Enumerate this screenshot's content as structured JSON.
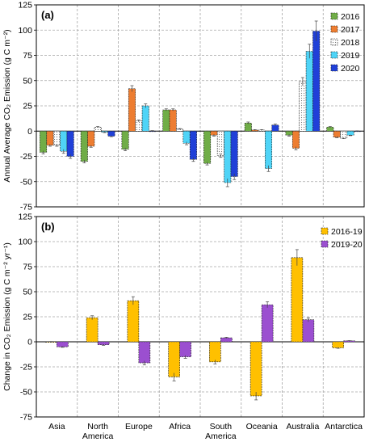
{
  "chart_data": [
    {
      "type": "bar",
      "panel_label": "(a)",
      "ylabel": "Annual Average CO₂ Emission (g C m⁻²)",
      "ylim": [
        -75,
        125
      ],
      "yticks": [
        -75,
        -50,
        -25,
        0,
        25,
        50,
        75,
        100,
        125
      ],
      "grid": true,
      "legend_position": "top-right",
      "categories": [
        "Asia",
        "North America",
        "Europe",
        "Africa",
        "South America",
        "Oceania",
        "Australia",
        "Antarctica"
      ],
      "series": [
        {
          "name": "2016",
          "color": "#70ad47",
          "values": [
            -21,
            -30,
            -18,
            21,
            -32,
            8,
            -4,
            4
          ],
          "errors": [
            1.5,
            1.5,
            1.5,
            1,
            1.5,
            1,
            1,
            0.5
          ]
        },
        {
          "name": "2017",
          "color": "#ed7d31",
          "values": [
            -14,
            -15,
            42,
            21,
            -4,
            1,
            -17,
            -6
          ],
          "errors": [
            1,
            1,
            3,
            1,
            1,
            0.5,
            1.5,
            0.5
          ]
        },
        {
          "name": "2018",
          "color": "#ffffff",
          "pattern": "dotted",
          "values": [
            -14,
            4,
            10,
            2,
            -24,
            1,
            49,
            -7
          ],
          "errors": [
            1,
            0.5,
            1,
            0.5,
            2,
            0.5,
            4,
            0.5
          ]
        },
        {
          "name": "2019",
          "color": "#4fd4f7",
          "values": [
            -20,
            -1,
            25,
            -12,
            -51,
            -37,
            79,
            -4
          ],
          "errors": [
            2,
            0.5,
            2,
            1.5,
            4,
            3,
            7,
            0.5
          ]
        },
        {
          "name": "2020",
          "color": "#2040d8",
          "values": [
            -25,
            -5,
            0,
            -28,
            -45,
            6,
            99,
            0
          ],
          "errors": [
            2,
            0.5,
            0.5,
            2,
            3,
            1,
            10,
            0.3
          ]
        }
      ]
    },
    {
      "type": "bar",
      "panel_label": "(b)",
      "ylabel": "Change in CO₂ Emission (g C m⁻² yr⁻¹)",
      "ylim": [
        -75,
        125
      ],
      "yticks": [
        -75,
        -50,
        -25,
        0,
        25,
        50,
        75,
        100,
        125
      ],
      "grid": true,
      "legend_position": "top-right",
      "categories": [
        "Asia",
        "North America",
        "Europe",
        "Africa",
        "South America",
        "Oceania",
        "Australia",
        "Antarctica"
      ],
      "category_lines": [
        [
          "Asia"
        ],
        [
          "North",
          "America"
        ],
        [
          "Europe"
        ],
        [
          "Africa"
        ],
        [
          "South",
          "America"
        ],
        [
          "Oceania"
        ],
        [
          "Australia"
        ],
        [
          "Antarctica"
        ]
      ],
      "series": [
        {
          "name": "2016-19",
          "color": "#ffc000",
          "values": [
            0,
            24,
            41,
            -35,
            -20,
            -54,
            84,
            -6
          ],
          "errors": [
            0.3,
            2,
            4,
            4,
            2,
            4,
            8,
            0.5
          ]
        },
        {
          "name": "2019-20",
          "color": "#9b4fd0",
          "values": [
            -5,
            -3,
            -21,
            -15,
            4,
            37,
            22,
            1
          ],
          "errors": [
            0.5,
            0.5,
            2,
            1.5,
            0.5,
            3,
            2,
            0.2
          ]
        }
      ]
    }
  ]
}
